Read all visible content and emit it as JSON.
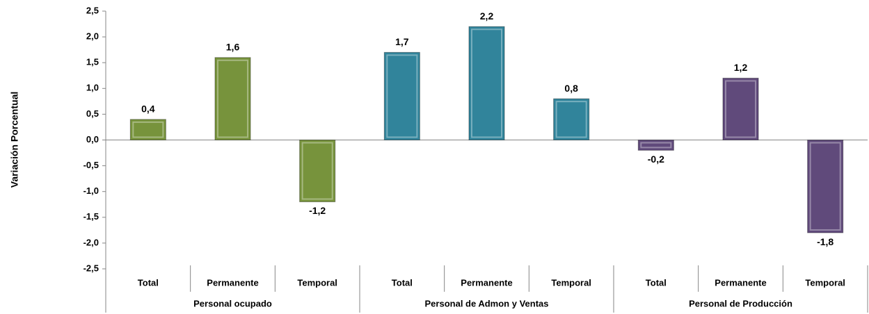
{
  "chart_data": {
    "type": "bar",
    "y_label": "Variación Porcentual",
    "ylim": [
      -2.5,
      2.5
    ],
    "yticks": [
      {
        "value": -2.5,
        "label": "-2,5"
      },
      {
        "value": -2,
        "label": "-2,0"
      },
      {
        "value": -1.5,
        "label": "-1,5"
      },
      {
        "value": -1,
        "label": "-1,0"
      },
      {
        "value": -0.5,
        "label": "-0,5"
      },
      {
        "value": 0,
        "label": "0,0"
      },
      {
        "value": 0.5,
        "label": "0,5"
      },
      {
        "value": 1,
        "label": "1,0"
      },
      {
        "value": 1.5,
        "label": "1,5"
      },
      {
        "value": 2,
        "label": "2,0"
      },
      {
        "value": 2.5,
        "label": "2,5"
      }
    ],
    "series": [
      {
        "name": "Personal ocupado",
        "color": "#77933c",
        "categories": [
          "Total",
          "Permanente",
          "Temporal"
        ],
        "values": [
          0.4,
          1.6,
          -1.2
        ],
        "value_labels": [
          "0,4",
          "1,6",
          "-1,2"
        ]
      },
      {
        "name": "Personal de Admon y Ventas",
        "color": "#31849b",
        "categories": [
          "Total",
          "Permanente",
          "Temporal"
        ],
        "values": [
          1.7,
          2.2,
          0.8
        ],
        "value_labels": [
          "1,7",
          "2,2",
          "0,8"
        ]
      },
      {
        "name": "Personal de Producción",
        "color": "#604a7b",
        "categories": [
          "Total",
          "Permanente",
          "Temporal"
        ],
        "values": [
          -0.2,
          1.2,
          -1.8
        ],
        "value_labels": [
          "-0,2",
          "1,2",
          "-1,8"
        ]
      }
    ]
  }
}
